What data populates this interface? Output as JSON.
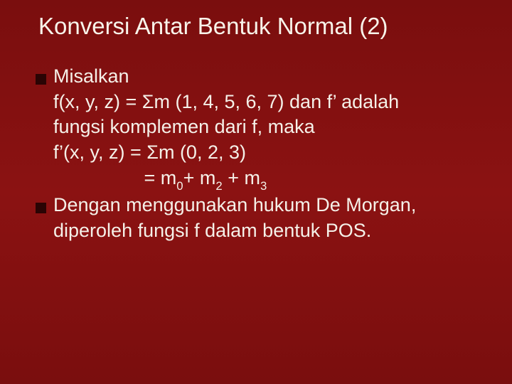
{
  "slide": {
    "title": "Konversi Antar Bentuk Normal (2)",
    "bullet1_label": "Misalkan",
    "line1a": "f(x, y, z) = ",
    "sigma1": "Σ",
    "line1b": "m (1, 4, 5, 6, 7) dan f’ adalah",
    "line2": "fungsi komplemen dari f, maka",
    "line3a": "f’(x, y, z) = ",
    "sigma2": "Σ",
    "line3b": "m (0, 2, 3)",
    "line4_pad": "                 = m",
    "m0": "0",
    "line4_b": "+ m",
    "m2": "2",
    "line4_c": " + m",
    "m3": "3",
    "bullet2_label": "Dengan menggunakan hukum De Morgan,",
    "line5": "diperoleh fungsi f dalam bentuk POS.",
    "background_color": "#8b1212",
    "text_color": "#f5f0e8",
    "bullet_color": "#2a0404",
    "title_fontsize": 33,
    "body_fontsize": 27
  }
}
